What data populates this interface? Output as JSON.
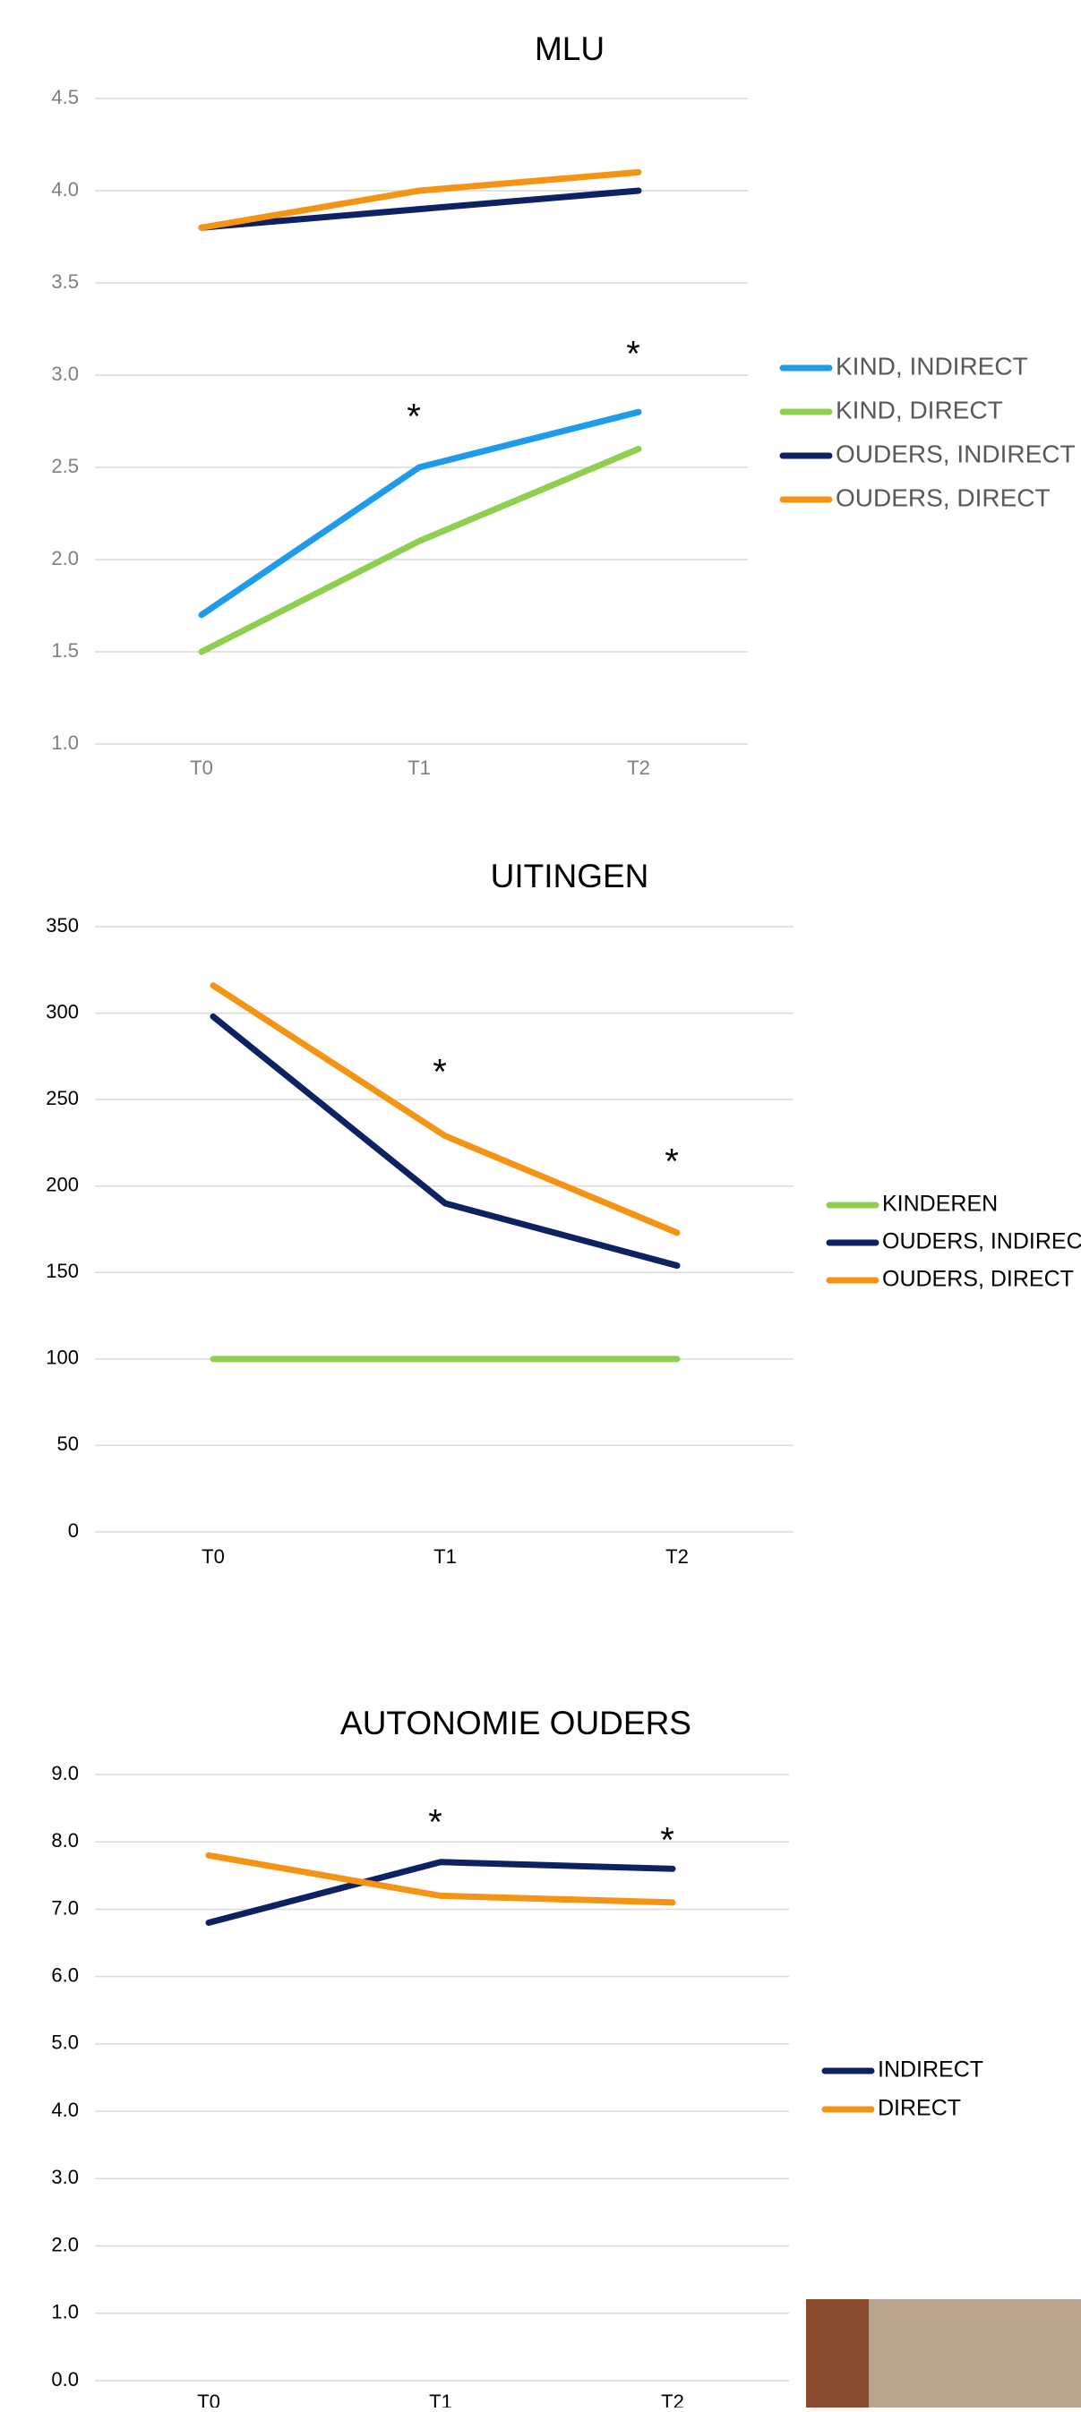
{
  "chart_data": [
    {
      "type": "line",
      "title": "MLU",
      "categories": [
        "T0",
        "T1",
        "T2"
      ],
      "series": [
        {
          "name": "KIND, INDIRECT",
          "color": "#1e9be9",
          "values": [
            1.7,
            2.5,
            2.8
          ]
        },
        {
          "name": "KIND, DIRECT",
          "color": "#8fcf4f",
          "values": [
            1.5,
            2.1,
            2.6
          ]
        },
        {
          "name": "OUDERS, INDIRECT",
          "color": "#0d2262",
          "values": [
            3.8,
            3.9,
            4.0
          ]
        },
        {
          "name": "OUDERS, DIRECT",
          "color": "#f59314",
          "values": [
            3.8,
            4.0,
            4.1
          ]
        }
      ],
      "ylim": [
        1,
        4.5
      ],
      "yticks": [
        {
          "value": 1,
          "label": "1.0"
        },
        1.5,
        {
          "value": 2,
          "label": "2.0"
        },
        2.5,
        {
          "value": 3,
          "label": "3.0"
        },
        3.5,
        {
          "value": 4,
          "label": "4.0"
        },
        4.5
      ],
      "grid": true,
      "legend": "right",
      "annotations": [
        {
          "text": "*",
          "category": "T1"
        },
        {
          "text": "*",
          "category": "T2"
        }
      ]
    },
    {
      "type": "line",
      "title": "UITINGEN",
      "categories": [
        "T0",
        "T1",
        "T2"
      ],
      "series": [
        {
          "name": "KINDEREN",
          "color": "#8fcf4f",
          "values": [
            100,
            100,
            100
          ]
        },
        {
          "name": "OUDERS, INDIRECT",
          "color": "#0d2262",
          "values": [
            298,
            190,
            154
          ]
        },
        {
          "name": "OUDERS, DIRECT",
          "color": "#f59314",
          "values": [
            316,
            229,
            173
          ]
        }
      ],
      "ylim": [
        0,
        350
      ],
      "yticks": [
        0,
        50,
        100,
        150,
        200,
        250,
        300,
        350
      ],
      "grid": true,
      "legend": "right",
      "annotations": [
        {
          "text": "*",
          "category": "T1"
        },
        {
          "text": "*",
          "category": "T2"
        }
      ]
    },
    {
      "type": "line",
      "title": "AUTONOMIE OUDERS",
      "categories": [
        "T0",
        "T1",
        "T2"
      ],
      "series": [
        {
          "name": "INDIRECT",
          "color": "#0d2262",
          "values": [
            6.8,
            7.7,
            7.6
          ]
        },
        {
          "name": "DIRECT",
          "color": "#f59314",
          "values": [
            7.8,
            7.2,
            7.1
          ]
        }
      ],
      "ylim": [
        0,
        9
      ],
      "yticks": [
        {
          "value": 0,
          "label": "0.0"
        },
        {
          "value": 1,
          "label": "1.0"
        },
        {
          "value": 2,
          "label": "2.0"
        },
        {
          "value": 3,
          "label": "3.0"
        },
        {
          "value": 4,
          "label": "4.0"
        },
        {
          "value": 5,
          "label": "5.0"
        },
        {
          "value": 6,
          "label": "6.0"
        },
        {
          "value": 7,
          "label": "7.0"
        },
        {
          "value": 8,
          "label": "8.0"
        },
        {
          "value": 9,
          "label": "9.0"
        }
      ],
      "grid": true,
      "legend": "right",
      "annotations": [
        {
          "text": "*",
          "category": "T1"
        },
        {
          "text": "*",
          "category": "T2"
        }
      ]
    }
  ]
}
